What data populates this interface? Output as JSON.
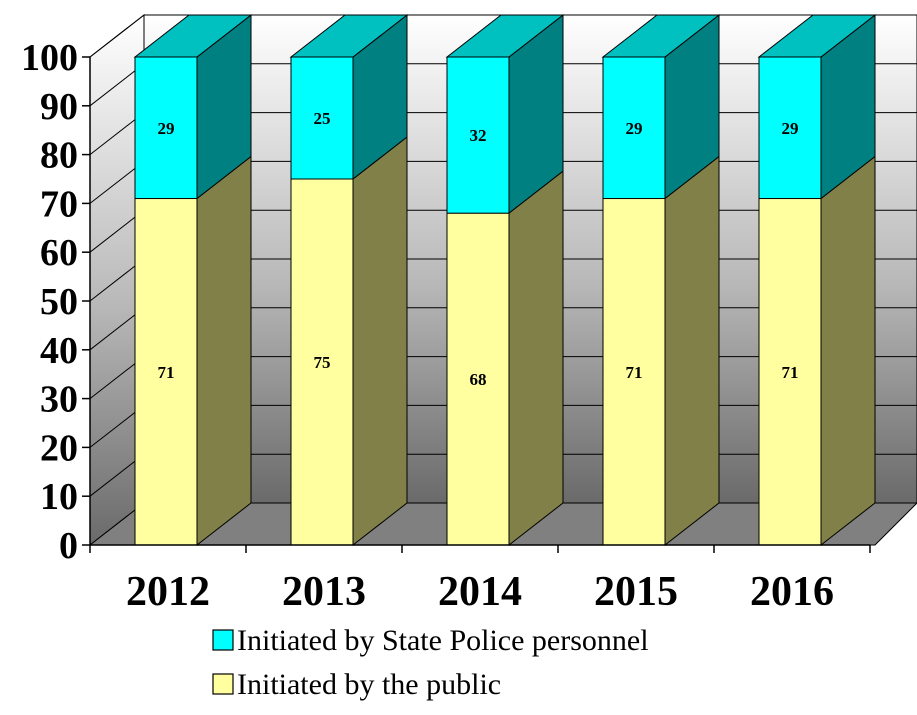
{
  "chart_data": {
    "type": "bar",
    "stacked": true,
    "three_d": true,
    "title": "",
    "xlabel": "",
    "ylabel": "",
    "categories": [
      "2012",
      "2013",
      "2014",
      "2015",
      "2016"
    ],
    "series": [
      {
        "name": "Initiated by the public",
        "values": [
          71,
          75,
          68,
          71,
          71
        ],
        "color": "#FFFFA0",
        "side_color": "#808048"
      },
      {
        "name": "Initiated by State Police personnel",
        "values": [
          29,
          25,
          32,
          29,
          29
        ],
        "color": "#00FFFF",
        "side_color": "#008080",
        "top_color": "#00C0C0"
      }
    ],
    "ylim": [
      0,
      100
    ],
    "yticks": [
      "0",
      "10",
      "20",
      "30",
      "40",
      "50",
      "60",
      "70",
      "80",
      "90",
      "100"
    ],
    "grid": true,
    "legend_position": "bottom",
    "legend_order": [
      "Initiated by State Police personnel",
      "Initiated by the public"
    ]
  }
}
